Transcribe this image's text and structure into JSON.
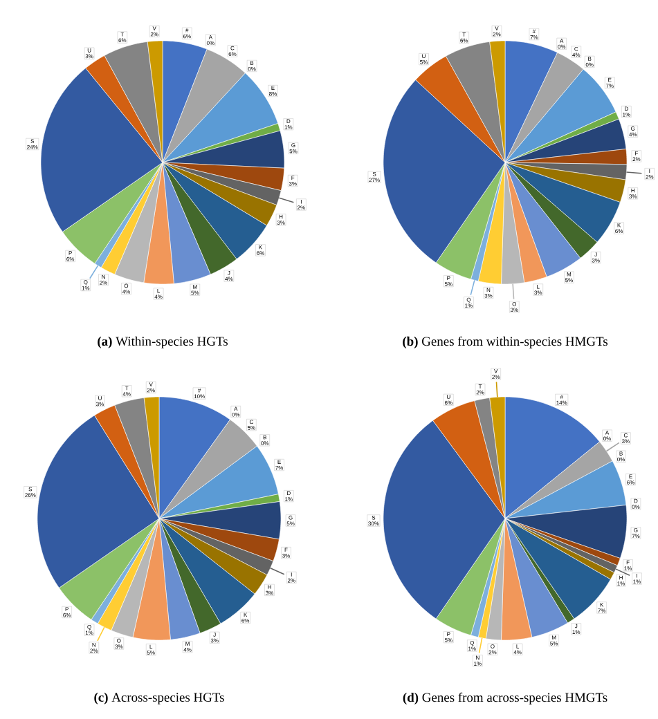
{
  "chart_data": [
    {
      "type": "pie",
      "title": "**(a)** Within-species HGTs",
      "categories": [
        "#",
        "A",
        "C",
        "B",
        "E",
        "D",
        "G",
        "F",
        "I",
        "H",
        "K",
        "J",
        "M",
        "L",
        "O",
        "N",
        "Q",
        "P",
        "S",
        "U",
        "T",
        "V"
      ],
      "values": [
        6,
        0,
        6,
        0,
        8,
        1,
        5,
        3,
        2,
        3,
        6,
        4,
        5,
        4,
        4,
        2,
        1,
        6,
        24,
        3,
        6,
        2
      ],
      "value_labels": [
        "6%",
        "0%",
        "6%",
        "0%",
        "8%",
        "1%",
        "5%",
        "3%",
        "2%",
        "3%",
        "6%",
        "4%",
        "5%",
        "4%",
        "4%",
        "2%",
        "1%",
        "6%",
        "24%",
        "3%",
        "6%",
        "2%"
      ],
      "colors": [
        "#4472c4",
        "#ed7d31",
        "#a5a5a5",
        "#ffc000",
        "#5b9bd5",
        "#70ad47",
        "#264478",
        "#9e480e",
        "#636363",
        "#997300",
        "#255e91",
        "#43682b",
        "#698ed0",
        "#f1975a",
        "#b7b7b7",
        "#ffcd33",
        "#7cafdd",
        "#8cc168",
        "#335aa1",
        "#d26012",
        "#848484",
        "#cc9a00"
      ]
    },
    {
      "type": "pie",
      "title": "**(b)** Genes from within-species HMGTs",
      "categories": [
        "#",
        "A",
        "C",
        "B",
        "E",
        "D",
        "G",
        "F",
        "I",
        "H",
        "K",
        "J",
        "M",
        "L",
        "O",
        "N",
        "Q",
        "P",
        "S",
        "U",
        "T",
        "V"
      ],
      "values": [
        7,
        0,
        4,
        0,
        7,
        1,
        4,
        2,
        2,
        3,
        6,
        3,
        5,
        3,
        3,
        3,
        1,
        5,
        27,
        5,
        6,
        2
      ],
      "value_labels": [
        "7%",
        "0%",
        "4%",
        "0%",
        "7%",
        "1%",
        "4%",
        "2%",
        "2%",
        "3%",
        "6%",
        "3%",
        "5%",
        "3%",
        "3%",
        "3%",
        "1%",
        "5%",
        "27%",
        "5%",
        "6%",
        "2%"
      ],
      "colors": [
        "#4472c4",
        "#ed7d31",
        "#a5a5a5",
        "#ffc000",
        "#5b9bd5",
        "#70ad47",
        "#264478",
        "#9e480e",
        "#636363",
        "#997300",
        "#255e91",
        "#43682b",
        "#698ed0",
        "#f1975a",
        "#b7b7b7",
        "#ffcd33",
        "#7cafdd",
        "#8cc168",
        "#335aa1",
        "#d26012",
        "#848484",
        "#cc9a00"
      ]
    },
    {
      "type": "pie",
      "title": "**(c)** Across-species HGTs",
      "categories": [
        "#",
        "A",
        "C",
        "B",
        "E",
        "D",
        "G",
        "F",
        "I",
        "H",
        "K",
        "J",
        "M",
        "L",
        "O",
        "N",
        "Q",
        "P",
        "S",
        "U",
        "T",
        "V"
      ],
      "values": [
        10,
        0,
        5,
        0,
        7,
        1,
        5,
        3,
        2,
        3,
        6,
        3,
        4,
        5,
        3,
        2,
        1,
        6,
        26,
        3,
        4,
        2
      ],
      "value_labels": [
        "10%",
        "0%",
        "5%",
        "0%",
        "7%",
        "1%",
        "5%",
        "3%",
        "2%",
        "3%",
        "6%",
        "3%",
        "4%",
        "5%",
        "3%",
        "2%",
        "1%",
        "6%",
        "26%",
        "3%",
        "4%",
        "2%"
      ],
      "colors": [
        "#4472c4",
        "#ed7d31",
        "#a5a5a5",
        "#ffc000",
        "#5b9bd5",
        "#70ad47",
        "#264478",
        "#9e480e",
        "#636363",
        "#997300",
        "#255e91",
        "#43682b",
        "#698ed0",
        "#f1975a",
        "#b7b7b7",
        "#ffcd33",
        "#7cafdd",
        "#8cc168",
        "#335aa1",
        "#d26012",
        "#848484",
        "#cc9a00"
      ]
    },
    {
      "type": "pie",
      "title": "**(d)** Genes from across-species HMGTs",
      "categories": [
        "#",
        "A",
        "C",
        "B",
        "E",
        "D",
        "G",
        "F",
        "I",
        "H",
        "K",
        "J",
        "M",
        "L",
        "O",
        "N",
        "Q",
        "P",
        "S",
        "U",
        "T",
        "V"
      ],
      "values": [
        14,
        0,
        3,
        0,
        6,
        0,
        7,
        1,
        1,
        1,
        7,
        1,
        5,
        4,
        2,
        1,
        1,
        5,
        30,
        6,
        2,
        2
      ],
      "value_labels": [
        "14%",
        "0%",
        "3%",
        "0%",
        "6%",
        "0%",
        "7%",
        "1%",
        "1%",
        "1%",
        "7%",
        "1%",
        "5%",
        "4%",
        "2%",
        "1%",
        "1%",
        "5%",
        "30%",
        "6%",
        "2%",
        "2%"
      ],
      "colors": [
        "#4472c4",
        "#ed7d31",
        "#a5a5a5",
        "#ffc000",
        "#5b9bd5",
        "#70ad47",
        "#264478",
        "#9e480e",
        "#636363",
        "#997300",
        "#255e91",
        "#43682b",
        "#698ed0",
        "#f1975a",
        "#b7b7b7",
        "#ffcd33",
        "#7cafdd",
        "#8cc168",
        "#335aa1",
        "#d26012",
        "#848484",
        "#cc9a00"
      ]
    }
  ]
}
